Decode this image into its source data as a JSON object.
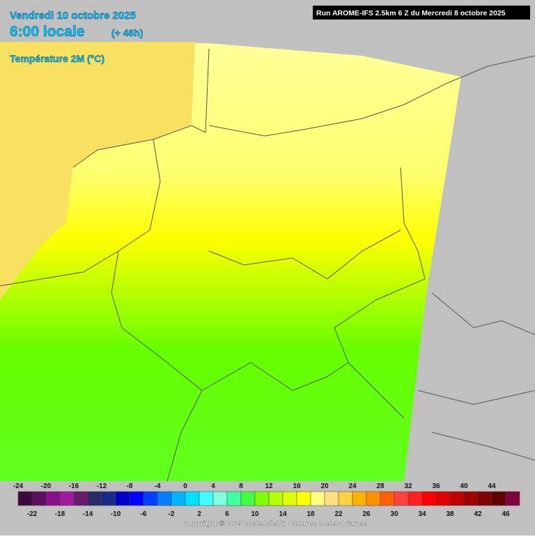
{
  "header": {
    "date": "Vendredi 10 octobre 2025",
    "time": "6:00 locale",
    "lead": "(+ 46h)",
    "variable": "Température 2M (°C)",
    "run": "Run AROME-IFS 2.5km 6 Z du Mercredi 8 octobre 2025"
  },
  "legend": {
    "values": [
      -24,
      -22,
      -20,
      -18,
      -16,
      -14,
      -12,
      -10,
      -8,
      -6,
      -4,
      -2,
      0,
      2,
      4,
      6,
      8,
      10,
      12,
      14,
      16,
      18,
      20,
      22,
      24,
      26,
      28,
      30,
      32,
      34,
      36,
      38,
      40,
      42,
      44,
      46
    ],
    "colors": [
      "#3c0a3c",
      "#5c0f5c",
      "#8b0f8b",
      "#a01aa0",
      "#6b1a6b",
      "#2a2a6a",
      "#1a2a8a",
      "#0000c8",
      "#0000ff",
      "#0040ff",
      "#0080ff",
      "#00b4ff",
      "#00e0ff",
      "#40ffff",
      "#80ffe0",
      "#40ffa0",
      "#40ff40",
      "#80ff00",
      "#b4ff00",
      "#e0ff00",
      "#ffff00",
      "#ffff80",
      "#ffe080",
      "#ffd040",
      "#ffb000",
      "#ff9000",
      "#ff6000",
      "#ff4040",
      "#ff2020",
      "#ff0000",
      "#e00000",
      "#c00000",
      "#a00000",
      "#800000",
      "#600000",
      "#800040"
    ]
  },
  "footer": {
    "copyright": "Copyright © 2025 Meteociel.fr - Source Meteo-France"
  }
}
